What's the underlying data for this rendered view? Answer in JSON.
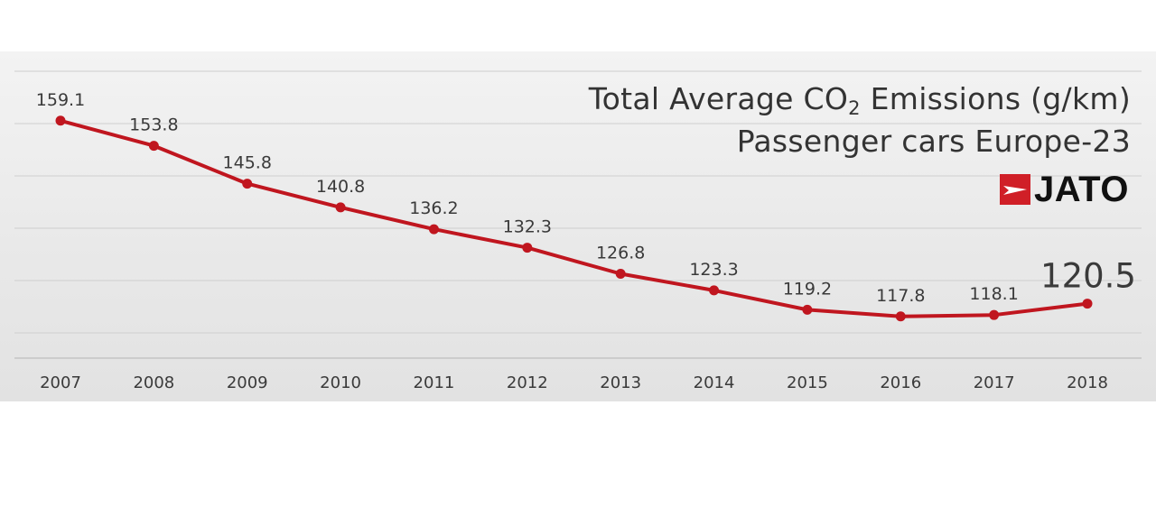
{
  "title": {
    "line1_prefix": "Total Average CO",
    "line1_subscript": "2",
    "line1_suffix": " Emissions (g/km)",
    "line2": "Passenger cars Europe-23"
  },
  "brand": {
    "name": "JATO",
    "logo_icon": "jato-arrow-icon"
  },
  "colors": {
    "line": "#c0161f",
    "marker": "#c0161f",
    "brand_red": "#d01f27",
    "text": "#3a3a3a",
    "grid": "#cfcfcf",
    "axis": "#bdbdbd"
  },
  "chart_data": {
    "type": "line",
    "title": "Total Average CO2 Emissions (g/km) Passenger cars Europe-23",
    "xlabel": "",
    "ylabel": "",
    "categories": [
      "2007",
      "2008",
      "2009",
      "2010",
      "2011",
      "2012",
      "2013",
      "2014",
      "2015",
      "2016",
      "2017",
      "2018"
    ],
    "series": [
      {
        "name": "Total Average CO2 Emissions (g/km)",
        "values": [
          159.1,
          153.8,
          145.8,
          140.8,
          136.2,
          132.3,
          126.8,
          123.3,
          119.2,
          117.8,
          118.1,
          120.5
        ],
        "labels": [
          "159.1",
          "153.8",
          "145.8",
          "140.8",
          "136.2",
          "132.3",
          "126.8",
          "123.3",
          "119.2",
          "117.8",
          "118.1",
          "120.5"
        ]
      }
    ],
    "ylim": [
      109,
      168
    ],
    "highlight_last": true,
    "grid": true
  }
}
